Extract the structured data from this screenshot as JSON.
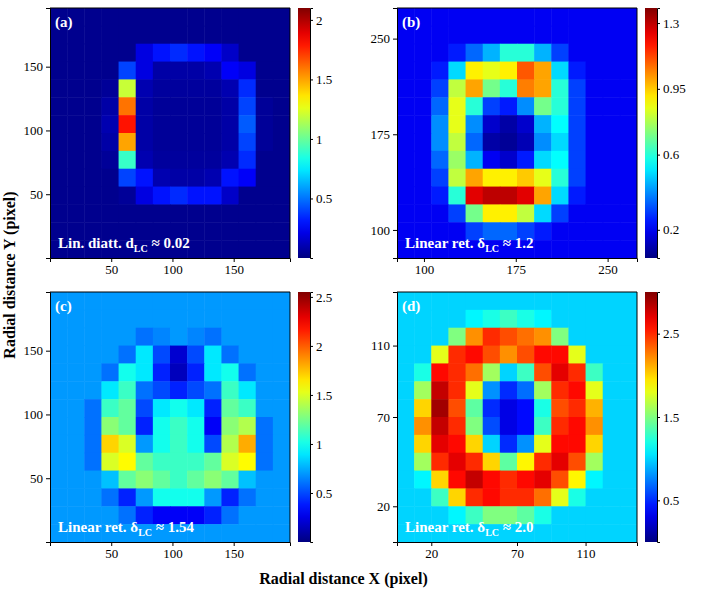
{
  "x_label": "Radial distance X (pixel)",
  "y_label": "Radial distance Y (pixel)",
  "chart_data": [
    {
      "type": "heatmap",
      "title": "(a)",
      "annotation": [
        "Lin. diatt. d",
        "LC",
        " ≈ 0.02"
      ],
      "xlim": [
        0,
        196
      ],
      "ylim": [
        0,
        196
      ],
      "xticks": [
        50,
        100,
        150
      ],
      "yticks": [
        50,
        100,
        150
      ],
      "x": [
        7,
        21,
        35,
        49,
        63,
        77,
        91,
        105,
        119,
        133,
        147,
        161,
        175,
        189
      ],
      "y": [
        189,
        175,
        161,
        147,
        133,
        119,
        105,
        91,
        77,
        63,
        49,
        35,
        21,
        7
      ],
      "z": [
        [
          0.03,
          0.03,
          0.03,
          0.03,
          0.03,
          0.03,
          0.03,
          0.03,
          0.03,
          0.03,
          0.03,
          0.03,
          0.03,
          0.03
        ],
        [
          0.03,
          0.03,
          0.03,
          0.03,
          0.03,
          0.03,
          0.03,
          0.03,
          0.03,
          0.03,
          0.03,
          0.03,
          0.03,
          0.03
        ],
        [
          0.03,
          0.03,
          0.03,
          0.03,
          0.03,
          0.2,
          0.3,
          0.35,
          0.3,
          0.25,
          0.15,
          0.03,
          0.03,
          0.03
        ],
        [
          0.03,
          0.03,
          0.03,
          0.03,
          0.4,
          0.2,
          0.08,
          0.08,
          0.08,
          0.1,
          0.25,
          0.2,
          0.03,
          0.03
        ],
        [
          0.03,
          0.03,
          0.03,
          0.05,
          1.2,
          0.1,
          0.06,
          0.06,
          0.06,
          0.06,
          0.1,
          0.35,
          0.03,
          0.03
        ],
        [
          0.03,
          0.03,
          0.03,
          0.08,
          1.6,
          0.08,
          0.05,
          0.05,
          0.05,
          0.05,
          0.08,
          0.4,
          0.05,
          0.03
        ],
        [
          0.03,
          0.03,
          0.03,
          0.1,
          1.8,
          0.08,
          0.05,
          0.05,
          0.05,
          0.05,
          0.08,
          0.45,
          0.05,
          0.03
        ],
        [
          0.03,
          0.03,
          0.03,
          0.08,
          1.5,
          0.08,
          0.05,
          0.05,
          0.05,
          0.05,
          0.08,
          0.4,
          0.05,
          0.03
        ],
        [
          0.03,
          0.03,
          0.03,
          0.05,
          0.9,
          0.1,
          0.06,
          0.06,
          0.06,
          0.06,
          0.1,
          0.35,
          0.03,
          0.03
        ],
        [
          0.03,
          0.03,
          0.03,
          0.03,
          0.4,
          0.3,
          0.1,
          0.08,
          0.08,
          0.1,
          0.3,
          0.25,
          0.03,
          0.03
        ],
        [
          0.03,
          0.03,
          0.03,
          0.03,
          0.05,
          0.2,
          0.3,
          0.35,
          0.3,
          0.3,
          0.15,
          0.03,
          0.03,
          0.03
        ],
        [
          0.03,
          0.03,
          0.03,
          0.03,
          0.03,
          0.03,
          0.03,
          0.03,
          0.03,
          0.03,
          0.03,
          0.03,
          0.03,
          0.03
        ],
        [
          0.03,
          0.03,
          0.03,
          0.03,
          0.03,
          0.03,
          0.03,
          0.03,
          0.03,
          0.03,
          0.03,
          0.03,
          0.03,
          0.03
        ],
        [
          0.03,
          0.03,
          0.03,
          0.03,
          0.03,
          0.03,
          0.03,
          0.03,
          0.03,
          0.03,
          0.03,
          0.03,
          0.03,
          0.03
        ]
      ],
      "colorbar_lim": [
        0,
        2.1
      ],
      "colorbar_ticks": [
        0.5,
        1,
        1.5,
        2
      ]
    },
    {
      "type": "heatmap",
      "title": "(b)",
      "annotation": [
        "Linear ret. δ",
        "LC",
        " ≈ 1.2"
      ],
      "xlim": [
        78,
        274
      ],
      "ylim": [
        78,
        274
      ],
      "xticks": [
        100,
        175,
        250
      ],
      "yticks": [
        100,
        175,
        250
      ],
      "x": [
        85,
        99,
        113,
        127,
        141,
        155,
        169,
        183,
        197,
        211,
        225,
        239,
        253,
        267
      ],
      "y": [
        267,
        253,
        239,
        225,
        211,
        197,
        183,
        169,
        155,
        141,
        127,
        113,
        99,
        85
      ],
      "z": [
        [
          0.2,
          0.2,
          0.2,
          0.2,
          0.2,
          0.2,
          0.2,
          0.2,
          0.2,
          0.2,
          0.2,
          0.2,
          0.2,
          0.2
        ],
        [
          0.2,
          0.2,
          0.2,
          0.2,
          0.2,
          0.2,
          0.2,
          0.2,
          0.2,
          0.2,
          0.2,
          0.2,
          0.2,
          0.2
        ],
        [
          0.2,
          0.2,
          0.2,
          0.25,
          0.35,
          0.45,
          0.6,
          0.6,
          0.45,
          0.3,
          0.2,
          0.2,
          0.2,
          0.2
        ],
        [
          0.2,
          0.2,
          0.25,
          0.5,
          0.9,
          0.85,
          0.9,
          1.1,
          1.0,
          0.5,
          0.25,
          0.2,
          0.2,
          0.2
        ],
        [
          0.2,
          0.2,
          0.3,
          0.8,
          1.0,
          0.7,
          0.6,
          1.05,
          1.0,
          0.6,
          0.3,
          0.2,
          0.2,
          0.2
        ],
        [
          0.2,
          0.2,
          0.35,
          0.85,
          0.6,
          0.3,
          0.25,
          0.4,
          0.7,
          0.6,
          0.3,
          0.2,
          0.2,
          0.2
        ],
        [
          0.2,
          0.2,
          0.4,
          0.85,
          0.4,
          0.15,
          0.1,
          0.15,
          0.45,
          0.55,
          0.3,
          0.2,
          0.2,
          0.2
        ],
        [
          0.2,
          0.2,
          0.4,
          0.8,
          0.35,
          0.1,
          0.08,
          0.12,
          0.4,
          0.5,
          0.3,
          0.2,
          0.2,
          0.2
        ],
        [
          0.2,
          0.2,
          0.35,
          0.75,
          0.45,
          0.2,
          0.15,
          0.25,
          0.5,
          0.55,
          0.3,
          0.2,
          0.2,
          0.2
        ],
        [
          0.2,
          0.2,
          0.3,
          0.8,
          1.0,
          0.9,
          0.9,
          0.95,
          0.85,
          0.6,
          0.3,
          0.2,
          0.2,
          0.2
        ],
        [
          0.2,
          0.2,
          0.25,
          0.6,
          1.25,
          1.3,
          1.3,
          1.25,
          1.0,
          0.5,
          0.25,
          0.2,
          0.2,
          0.2
        ],
        [
          0.2,
          0.2,
          0.2,
          0.3,
          0.7,
          0.9,
          0.9,
          0.8,
          0.5,
          0.3,
          0.2,
          0.2,
          0.2,
          0.2
        ],
        [
          0.2,
          0.2,
          0.2,
          0.2,
          0.3,
          0.35,
          0.35,
          0.3,
          0.25,
          0.2,
          0.2,
          0.2,
          0.2,
          0.2
        ],
        [
          0.2,
          0.2,
          0.2,
          0.2,
          0.2,
          0.2,
          0.2,
          0.2,
          0.2,
          0.2,
          0.2,
          0.2,
          0.2,
          0.2
        ]
      ],
      "colorbar_lim": [
        0.05,
        1.38
      ],
      "colorbar_ticks": [
        0.2,
        0.6,
        0.95,
        1.3
      ]
    },
    {
      "type": "heatmap",
      "title": "(c)",
      "annotation": [
        "Linear ret. δ",
        "LC",
        " ≈ 1.54"
      ],
      "xlim": [
        0,
        196
      ],
      "ylim": [
        0,
        196
      ],
      "xticks": [
        50,
        100,
        150
      ],
      "yticks": [
        50,
        100,
        150
      ],
      "x": [
        7,
        21,
        35,
        49,
        63,
        77,
        91,
        105,
        119,
        133,
        147,
        161,
        175,
        189
      ],
      "y": [
        189,
        175,
        161,
        147,
        133,
        119,
        105,
        91,
        77,
        63,
        49,
        35,
        21,
        7
      ],
      "z": [
        [
          0.7,
          0.7,
          0.7,
          0.7,
          0.7,
          0.7,
          0.7,
          0.7,
          0.7,
          0.7,
          0.7,
          0.7,
          0.7,
          0.7
        ],
        [
          0.7,
          0.7,
          0.7,
          0.7,
          0.7,
          0.7,
          0.7,
          0.7,
          0.7,
          0.7,
          0.7,
          0.7,
          0.7,
          0.7
        ],
        [
          0.7,
          0.7,
          0.7,
          0.7,
          0.7,
          0.6,
          0.65,
          0.7,
          0.65,
          0.6,
          0.7,
          0.7,
          0.7,
          0.7
        ],
        [
          0.7,
          0.7,
          0.7,
          0.7,
          0.6,
          0.9,
          0.5,
          0.2,
          0.5,
          0.9,
          0.6,
          0.7,
          0.7,
          0.7
        ],
        [
          0.7,
          0.7,
          0.7,
          0.6,
          1.0,
          0.9,
          0.4,
          0.15,
          0.4,
          0.9,
          1.0,
          0.6,
          0.7,
          0.7
        ],
        [
          0.7,
          0.7,
          0.7,
          0.9,
          1.1,
          0.6,
          0.5,
          0.4,
          0.5,
          0.6,
          1.1,
          0.9,
          0.7,
          0.7
        ],
        [
          0.7,
          0.7,
          0.6,
          1.1,
          1.2,
          0.5,
          0.9,
          1.0,
          0.9,
          0.4,
          1.2,
          1.1,
          0.7,
          0.7
        ],
        [
          0.7,
          0.7,
          0.6,
          1.3,
          1.2,
          0.4,
          1.0,
          1.1,
          1.0,
          0.3,
          1.3,
          1.4,
          0.6,
          0.7
        ],
        [
          0.7,
          0.7,
          0.6,
          1.7,
          1.5,
          0.7,
          1.0,
          1.1,
          1.0,
          0.5,
          1.4,
          1.8,
          0.6,
          0.7
        ],
        [
          0.7,
          0.7,
          0.6,
          1.5,
          1.6,
          1.2,
          1.1,
          1.1,
          1.1,
          1.2,
          1.5,
          1.6,
          0.6,
          0.7
        ],
        [
          0.7,
          0.7,
          0.7,
          0.8,
          1.2,
          1.3,
          1.2,
          1.1,
          1.2,
          1.3,
          1.2,
          0.8,
          0.7,
          0.7
        ],
        [
          0.7,
          0.7,
          0.7,
          0.6,
          0.4,
          0.7,
          1.0,
          1.0,
          1.0,
          0.7,
          0.4,
          0.6,
          0.7,
          0.7
        ],
        [
          0.7,
          0.7,
          0.7,
          0.7,
          0.6,
          0.4,
          0.3,
          0.3,
          0.3,
          0.4,
          0.6,
          0.7,
          0.7,
          0.7
        ],
        [
          0.7,
          0.7,
          0.7,
          0.7,
          0.7,
          0.7,
          0.7,
          0.7,
          0.7,
          0.7,
          0.7,
          0.7,
          0.7,
          0.7
        ]
      ],
      "colorbar_lim": [
        0,
        2.55
      ],
      "colorbar_ticks": [
        0.5,
        1,
        1.5,
        2,
        2.5
      ]
    },
    {
      "type": "heatmap",
      "title": "(d)",
      "annotation": [
        "Linear ret. δ",
        "LC",
        " ≈ 2.0"
      ],
      "xlim": [
        0,
        140
      ],
      "ylim": [
        0,
        140
      ],
      "xticks": [
        20,
        70,
        110
      ],
      "yticks": [
        20,
        70,
        110
      ],
      "x": [
        5,
        15,
        25,
        35,
        45,
        55,
        65,
        75,
        85,
        95,
        105,
        115,
        125,
        135
      ],
      "y": [
        135,
        125,
        115,
        105,
        95,
        85,
        75,
        65,
        55,
        45,
        35,
        25,
        15,
        5
      ],
      "z": [
        [
          1.0,
          1.0,
          1.0,
          1.0,
          1.0,
          1.0,
          1.0,
          1.0,
          1.0,
          1.0,
          1.0,
          1.0,
          1.0,
          1.0
        ],
        [
          1.0,
          1.0,
          1.0,
          1.0,
          1.1,
          1.2,
          1.3,
          1.2,
          1.1,
          1.0,
          1.0,
          1.0,
          1.0,
          1.0
        ],
        [
          1.0,
          1.0,
          1.0,
          1.5,
          2.2,
          2.5,
          2.4,
          2.3,
          2.2,
          1.5,
          1.0,
          1.0,
          1.0,
          1.0
        ],
        [
          1.0,
          1.0,
          1.8,
          2.5,
          2.6,
          2.4,
          2.2,
          2.4,
          2.6,
          2.6,
          1.8,
          1.0,
          1.0,
          1.0
        ],
        [
          1.0,
          1.2,
          2.6,
          2.5,
          2.3,
          1.6,
          1.0,
          1.3,
          2.4,
          2.7,
          2.5,
          1.3,
          1.0,
          1.0
        ],
        [
          1.0,
          1.6,
          2.8,
          2.5,
          1.8,
          0.8,
          0.5,
          0.7,
          1.6,
          2.5,
          2.6,
          1.8,
          1.0,
          1.0
        ],
        [
          1.0,
          2.0,
          2.9,
          2.4,
          1.4,
          0.5,
          0.3,
          0.4,
          1.2,
          2.4,
          2.5,
          2.1,
          1.0,
          1.0
        ],
        [
          1.0,
          2.2,
          2.8,
          2.5,
          1.5,
          0.6,
          0.3,
          0.4,
          1.3,
          2.5,
          2.6,
          2.2,
          1.0,
          1.0
        ],
        [
          1.0,
          2.0,
          2.7,
          2.6,
          2.0,
          1.0,
          0.5,
          0.8,
          1.8,
          2.6,
          2.6,
          2.0,
          1.0,
          1.0
        ],
        [
          1.0,
          1.6,
          2.5,
          2.7,
          2.5,
          2.0,
          1.4,
          1.9,
          2.5,
          2.7,
          2.4,
          1.6,
          1.0,
          1.0
        ],
        [
          1.0,
          1.1,
          2.0,
          2.6,
          2.8,
          2.6,
          2.5,
          2.6,
          2.7,
          2.4,
          1.9,
          1.1,
          1.0,
          1.0
        ],
        [
          1.0,
          1.0,
          1.3,
          2.0,
          2.5,
          2.6,
          2.5,
          2.5,
          2.3,
          1.8,
          1.2,
          1.0,
          1.0,
          1.0
        ],
        [
          1.0,
          1.0,
          1.0,
          1.1,
          1.3,
          1.5,
          1.5,
          1.4,
          1.2,
          1.0,
          1.0,
          1.0,
          1.0,
          1.0
        ],
        [
          1.0,
          1.0,
          1.0,
          1.0,
          1.0,
          1.0,
          1.0,
          1.0,
          1.0,
          1.0,
          1.0,
          1.0,
          1.0,
          1.0
        ]
      ],
      "colorbar_lim": [
        0,
        3.0
      ],
      "colorbar_ticks": [
        0.5,
        1.5,
        2.5
      ]
    }
  ]
}
